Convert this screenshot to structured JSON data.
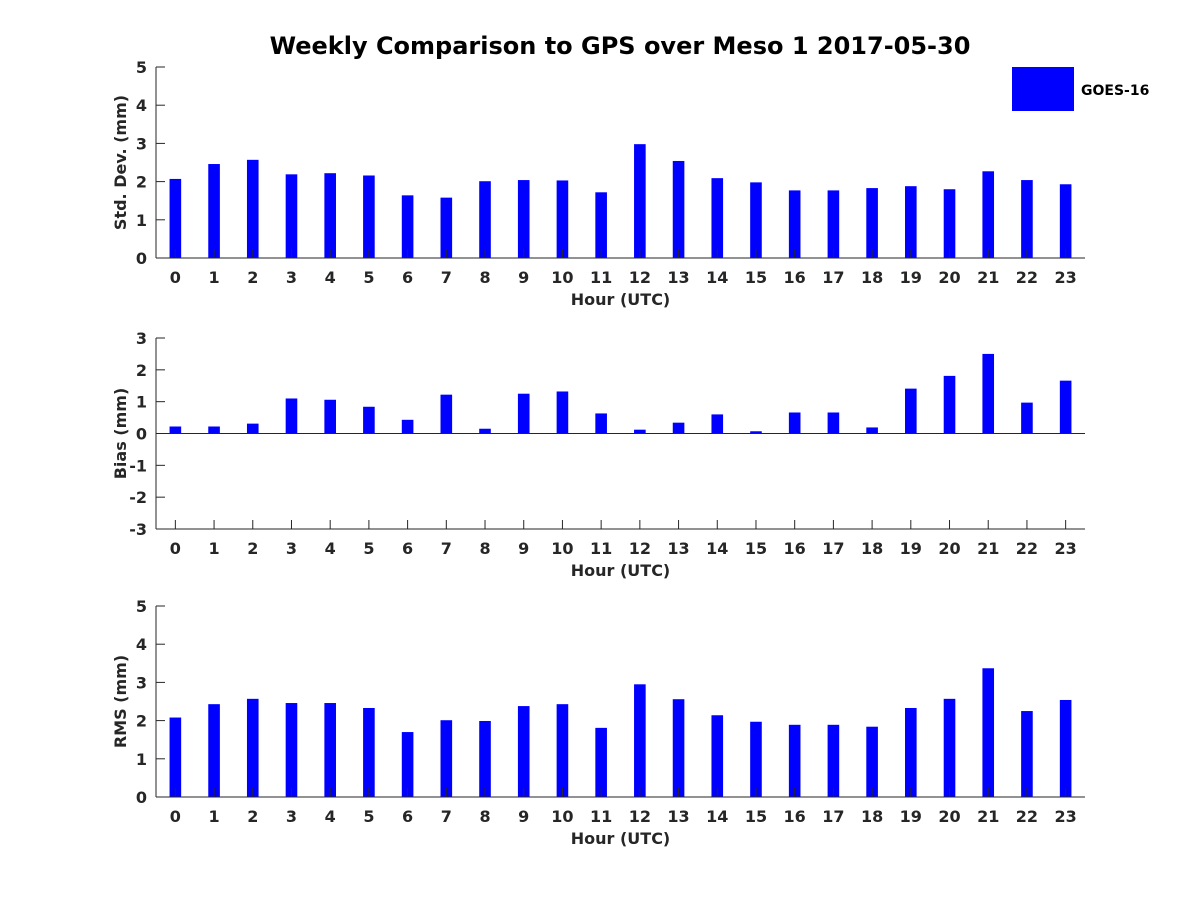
{
  "chart_data": {
    "type": "bar",
    "title": "Weekly Comparison to GPS over Meso 1 2017-05-30",
    "legend": {
      "entries": [
        "GOES-16"
      ],
      "placement": "top-right"
    },
    "colors": {
      "bar": "#0000ff",
      "axis": "#262626",
      "text": "#262626"
    },
    "panels": [
      {
        "type": "bar",
        "xlabel": "Hour (UTC)",
        "ylabel": "Std. Dev. (mm)",
        "ylim": [
          0,
          5
        ],
        "yticks": [
          0,
          1,
          2,
          3,
          4,
          5
        ],
        "categories": [
          "0",
          "1",
          "2",
          "3",
          "4",
          "5",
          "6",
          "7",
          "8",
          "9",
          "10",
          "11",
          "12",
          "13",
          "14",
          "15",
          "16",
          "17",
          "18",
          "19",
          "20",
          "21",
          "22",
          "23"
        ],
        "series": [
          {
            "name": "GOES-16",
            "values": [
              2.07,
              2.46,
              2.57,
              2.19,
              2.22,
              2.16,
              1.64,
              1.58,
              2.01,
              2.04,
              2.03,
              1.72,
              2.98,
              2.54,
              2.09,
              1.98,
              1.77,
              1.77,
              1.83,
              1.88,
              1.8,
              2.27,
              2.04,
              1.93
            ]
          }
        ]
      },
      {
        "type": "bar",
        "xlabel": "Hour (UTC)",
        "ylabel": "Bias (mm)",
        "ylim": [
          -3,
          3
        ],
        "yticks": [
          -3,
          -2,
          -1,
          0,
          1,
          2,
          3
        ],
        "categories": [
          "0",
          "1",
          "2",
          "3",
          "4",
          "5",
          "6",
          "7",
          "8",
          "9",
          "10",
          "11",
          "12",
          "13",
          "14",
          "15",
          "16",
          "17",
          "18",
          "19",
          "20",
          "21",
          "22",
          "23"
        ],
        "series": [
          {
            "name": "GOES-16",
            "values": [
              0.22,
              0.22,
              0.31,
              1.1,
              1.06,
              0.84,
              0.43,
              1.22,
              0.15,
              1.25,
              1.32,
              0.63,
              0.12,
              0.34,
              0.6,
              0.07,
              0.66,
              0.66,
              0.19,
              1.41,
              1.81,
              2.5,
              0.97,
              1.66
            ]
          }
        ]
      },
      {
        "type": "bar",
        "xlabel": "Hour (UTC)",
        "ylabel": "RMS (mm)",
        "ylim": [
          0,
          5
        ],
        "yticks": [
          0,
          1,
          2,
          3,
          4,
          5
        ],
        "categories": [
          "0",
          "1",
          "2",
          "3",
          "4",
          "5",
          "6",
          "7",
          "8",
          "9",
          "10",
          "11",
          "12",
          "13",
          "14",
          "15",
          "16",
          "17",
          "18",
          "19",
          "20",
          "21",
          "22",
          "23"
        ],
        "series": [
          {
            "name": "GOES-16",
            "values": [
              2.08,
              2.43,
              2.57,
              2.46,
              2.46,
              2.33,
              1.7,
              2.01,
              1.99,
              2.38,
              2.43,
              1.81,
              2.95,
              2.56,
              2.14,
              1.97,
              1.89,
              1.89,
              1.84,
              2.33,
              2.57,
              3.37,
              2.25,
              2.54
            ]
          }
        ]
      }
    ]
  }
}
